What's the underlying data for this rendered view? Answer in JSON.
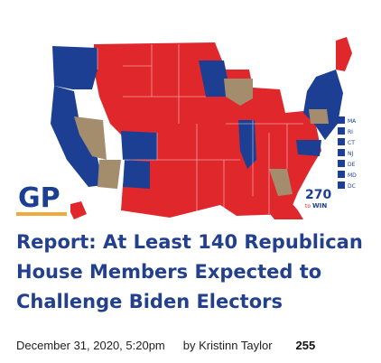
{
  "article": {
    "headline": "Report: At Least 140 Republican House Members Expected to Challenge Biden Electors",
    "date": "December 31, 2020, 5:20pm",
    "author_prefix": "by",
    "author": "Kristinn Taylor",
    "comment_count": "255"
  },
  "thumbnail": {
    "logo_text": "GP",
    "badge_number": "270",
    "badge_suffix": "to",
    "badge_word": "WIN",
    "small_states": [
      "MA",
      "RI",
      "CT",
      "NJ",
      "DE",
      "MD",
      "DC"
    ],
    "colors": {
      "republican": "#e0272c",
      "democrat": "#1c3f94",
      "undecided": "#a38d6c",
      "logo": "#1c3f94",
      "logo_accent": "#f2a93b",
      "headline": "#23408e"
    }
  }
}
